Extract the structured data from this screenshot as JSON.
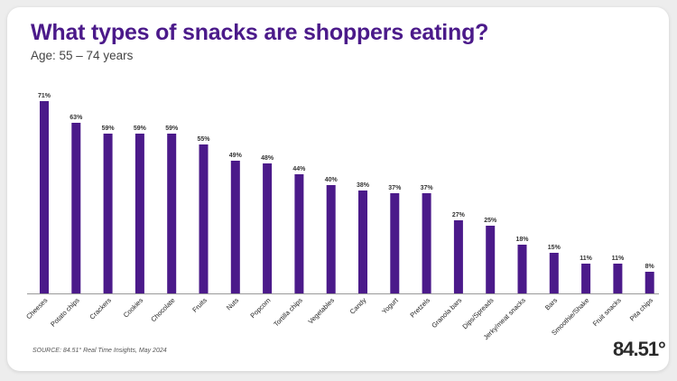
{
  "header": {
    "title": "What types of snacks are shoppers eating?",
    "subtitle": "Age: 55 – 74 years"
  },
  "footer": {
    "source": "SOURCE: 84.51° Real Time Insights, May 2024",
    "logo_text": "84.51°"
  },
  "colors": {
    "bar": "#4b1a8a",
    "title": "#4b1a8a",
    "axis": "#999999"
  },
  "chart_data": {
    "type": "bar",
    "title": "What types of snacks are shoppers eating?",
    "subtitle": "Age: 55 – 74 years",
    "xlabel": "",
    "ylabel": "",
    "ylim": [
      0,
      75
    ],
    "grid": false,
    "value_suffix": "%",
    "categories": [
      "Cheeses",
      "Potato chips",
      "Crackers",
      "Cookies",
      "Chocolate",
      "Fruits",
      "Nuts",
      "Popcorn",
      "Tortilla chips",
      "Vegetables",
      "Candy",
      "Yogurt",
      "Pretzels",
      "Granola bars",
      "Dips/Spreads",
      "Jerky/meat snacks",
      "Bars",
      "Smoothie/Shake",
      "Fruit snacks",
      "Pita chips"
    ],
    "values": [
      71,
      63,
      59,
      59,
      59,
      55,
      49,
      48,
      44,
      40,
      38,
      37,
      37,
      27,
      25,
      18,
      15,
      11,
      11,
      8
    ]
  }
}
